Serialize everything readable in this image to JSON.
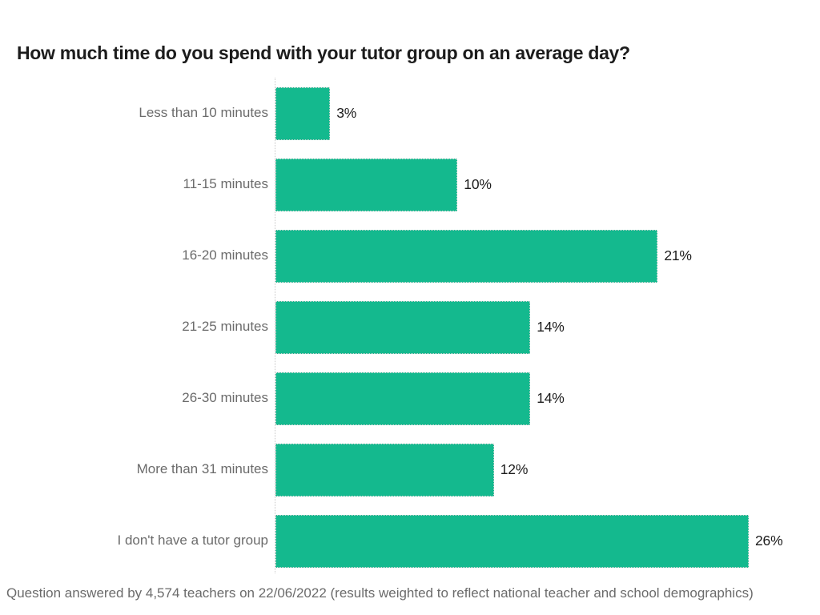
{
  "title": "How much time do you spend with your tutor group on an average day?",
  "footer": "Question answered by 4,574 teachers on 22/06/2022 (results weighted to reflect national teacher and school demographics)",
  "colors": {
    "bar": "#14b98e",
    "title_text": "#1c1c1c",
    "category_text": "#6b6b6b",
    "value_text": "#1c1c1c",
    "axis_line": "#c8c8c8",
    "background": "#ffffff"
  },
  "chart_data": {
    "type": "bar",
    "orientation": "horizontal",
    "title": "How much time do you spend with your tutor group on an average day?",
    "categories": [
      "Less than 10 minutes",
      "11-15 minutes",
      "16-20 minutes",
      "21-25 minutes",
      "26-30 minutes",
      "More than 31 minutes",
      "I don't have a tutor group"
    ],
    "values": [
      3,
      10,
      21,
      14,
      14,
      12,
      26
    ],
    "value_labels": [
      "3%",
      "10%",
      "21%",
      "14%",
      "14%",
      "12%",
      "26%"
    ],
    "unit": "%",
    "xlabel": "",
    "ylabel": "",
    "xlim": [
      0,
      26
    ],
    "grid": false,
    "legend": "none",
    "bar_color": "#14b98e",
    "value_label_position": "outside-end",
    "axis_style": "dotted-baseline",
    "source_note": "Question answered by 4,574 teachers on 22/06/2022 (results weighted to reflect national teacher and school demographics)"
  }
}
